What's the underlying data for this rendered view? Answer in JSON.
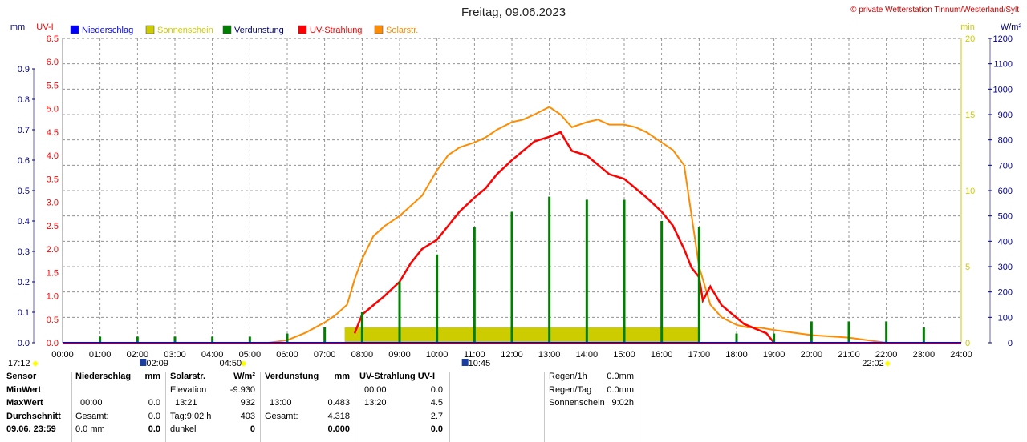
{
  "header": {
    "title": "Freitag, 09.06.2023",
    "copyright": "© private Wetterstation Tinnum/Westerland/Sylt"
  },
  "axis_units": {
    "mm": "mm",
    "uvi": "UV-I",
    "min": "min",
    "wm2": "W/m²"
  },
  "legend": [
    {
      "label": "Niederschlag",
      "color": "#0000ff",
      "text_color": "#0000ff"
    },
    {
      "label": "Sonnenschein",
      "color": "#cccc00",
      "text_color": "#cccc00"
    },
    {
      "label": "Verdunstung",
      "color": "#008000",
      "text_color": "#000080"
    },
    {
      "label": "UV-Strahlung",
      "color": "#ff0000",
      "text_color": "#ff0000"
    },
    {
      "label": "Solarstr.",
      "color": "#ff8c00",
      "text_color": "#ff8c00"
    }
  ],
  "colors": {
    "grid": "#808080",
    "mm_axis": "#000080",
    "uv_axis": "#ff0000",
    "min_axis": "#cccc00",
    "wm2_axis": "#000080",
    "axis_line": "#ff0000"
  },
  "chart_data": {
    "type": "line",
    "title": "Freitag, 09.06.2023",
    "x_ticks": [
      "00:00",
      "01:00",
      "02:00",
      "03:00",
      "04:00",
      "05:00",
      "06:00",
      "07:00",
      "08:00",
      "09:00",
      "10:00",
      "11:00",
      "12:00",
      "13:00",
      "14:00",
      "15:00",
      "16:00",
      "17:00",
      "18:00",
      "19:00",
      "20:00",
      "21:00",
      "22:00",
      "23:00",
      "24:00"
    ],
    "xlim_hours": [
      0,
      24
    ],
    "axes": {
      "mm": {
        "ylim": [
          0,
          1.0
        ],
        "ticks": [
          "0.0",
          "0.1",
          "0.2",
          "0.3",
          "0.4",
          "0.5",
          "0.6",
          "0.7",
          "0.8",
          "0.9"
        ]
      },
      "uvi": {
        "ylim": [
          0,
          6.5
        ],
        "ticks": [
          "0.0",
          "0.5",
          "1.0",
          "1.5",
          "2.0",
          "2.5",
          "3.0",
          "3.5",
          "4.0",
          "4.5",
          "5.0",
          "5.5",
          "6.0",
          "6.5"
        ]
      },
      "min": {
        "ylim": [
          0,
          20
        ],
        "ticks": [
          "0",
          "5",
          "10",
          "15",
          "20"
        ]
      },
      "wm2": {
        "ylim": [
          0,
          1200
        ],
        "ticks": [
          "0",
          "100",
          "200",
          "300",
          "400",
          "500",
          "600",
          "700",
          "800",
          "900",
          "1000",
          "1100",
          "1200"
        ]
      }
    },
    "grid": true,
    "series": [
      {
        "name": "Niederschlag",
        "axis": "mm",
        "x": [
          0,
          24
        ],
        "values": [
          0,
          0
        ]
      },
      {
        "name": "Sonnenschein",
        "axis": "min",
        "x_start": "07:32",
        "x_end": "17:00",
        "value": 1
      },
      {
        "name": "Verdunstung",
        "axis": "mm",
        "x": [
          1,
          2,
          3,
          4,
          5,
          6,
          7,
          8,
          9,
          10,
          11,
          12,
          13,
          14,
          15,
          16,
          17,
          18,
          19,
          20,
          21,
          22,
          23
        ],
        "values": [
          0.02,
          0.02,
          0.02,
          0.02,
          0.02,
          0.03,
          0.05,
          0.1,
          0.2,
          0.29,
          0.38,
          0.43,
          0.48,
          0.47,
          0.47,
          0.4,
          0.38,
          0.03,
          0.03,
          0.07,
          0.07,
          0.07,
          0.05
        ]
      },
      {
        "name": "UV-Strahlung",
        "axis": "uvi",
        "x": [
          7.8,
          8.0,
          8.3,
          8.6,
          9.0,
          9.3,
          9.6,
          10.0,
          10.3,
          10.6,
          11.0,
          11.3,
          11.6,
          12.0,
          12.3,
          12.6,
          13.0,
          13.3,
          13.6,
          14.0,
          14.3,
          14.6,
          15.0,
          15.3,
          15.6,
          16.0,
          16.3,
          16.6,
          16.8,
          17.0,
          17.1,
          17.3,
          17.6,
          17.9,
          18.2,
          18.5,
          18.8,
          19.0
        ],
        "values": [
          0.2,
          0.6,
          0.8,
          1.0,
          1.3,
          1.7,
          2.0,
          2.2,
          2.5,
          2.8,
          3.1,
          3.3,
          3.6,
          3.9,
          4.1,
          4.3,
          4.4,
          4.5,
          4.1,
          4.0,
          3.8,
          3.6,
          3.5,
          3.3,
          3.1,
          2.8,
          2.5,
          2.0,
          1.6,
          1.4,
          0.9,
          1.2,
          0.8,
          0.6,
          0.4,
          0.3,
          0.2,
          0.0
        ]
      },
      {
        "name": "Solarstr.",
        "axis": "wm2",
        "x": [
          5.5,
          6.0,
          6.5,
          7.0,
          7.3,
          7.6,
          7.8,
          8.0,
          8.3,
          8.6,
          9.0,
          9.3,
          9.6,
          10.0,
          10.3,
          10.6,
          11.0,
          11.3,
          11.6,
          12.0,
          12.3,
          12.6,
          13.0,
          13.3,
          13.6,
          14.0,
          14.3,
          14.6,
          15.0,
          15.3,
          15.6,
          16.0,
          16.3,
          16.6,
          16.8,
          17.0,
          17.3,
          17.6,
          18.0,
          18.3,
          18.6,
          19.0,
          19.5,
          20.0,
          21.0,
          21.5,
          22.0
        ],
        "values": [
          0,
          10,
          40,
          80,
          110,
          150,
          250,
          330,
          420,
          460,
          500,
          540,
          580,
          680,
          740,
          770,
          790,
          810,
          840,
          870,
          880,
          900,
          930,
          900,
          850,
          870,
          880,
          860,
          860,
          850,
          830,
          790,
          760,
          700,
          500,
          300,
          150,
          100,
          70,
          60,
          60,
          50,
          40,
          30,
          20,
          10,
          0
        ]
      }
    ]
  },
  "markers": {
    "left_time": "17:12",
    "moon_rise": "02:09",
    "sun_rise": "04:50",
    "moon_set": "10:45",
    "sun_set": "22:02"
  },
  "table": {
    "rows": [
      "Sensor",
      "MinWert",
      "MaxWert",
      "Durchschnitt",
      "09.06. 23:59"
    ],
    "niederschlag": {
      "header": "Niederschlag",
      "unit": "mm",
      "max_time": "00:00",
      "max_val": "0.0",
      "gesamt_label": "Gesamt:",
      "gesamt_val": "0.0",
      "cur_val": "0.0 mm",
      "cur_bold": "0.0"
    },
    "solar": {
      "header": "Solarstr.",
      "unit": "W/m²",
      "elev_label": "Elevation",
      "elev_val": "-9.930",
      "max_time": "13:21",
      "max_val": "932",
      "tag_label": "Tag:9:02 h",
      "tag_val": "403",
      "dunkel_label": "dunkel",
      "cur_val": "0"
    },
    "verdunstung": {
      "header": "Verdunstung",
      "unit": "mm",
      "max_time": "13:00",
      "max_val": "0.483",
      "gesamt_label": "Gesamt:",
      "gesamt_val": "4.318",
      "cur_val": "0.000"
    },
    "uv": {
      "header": "UV-Strahlung UV-I",
      "min_time": "00:00",
      "min_val": "0.0",
      "max_time": "13:20",
      "max_val": "4.5",
      "avg_val": "2.7",
      "cur_val": "0.0"
    },
    "extra": [
      {
        "label": "Regen/1h",
        "value": "0.0mm"
      },
      {
        "label": "Regen/Tag",
        "value": "0.0mm"
      },
      {
        "label": "Sonnenschein",
        "value": "9:02h"
      }
    ]
  }
}
